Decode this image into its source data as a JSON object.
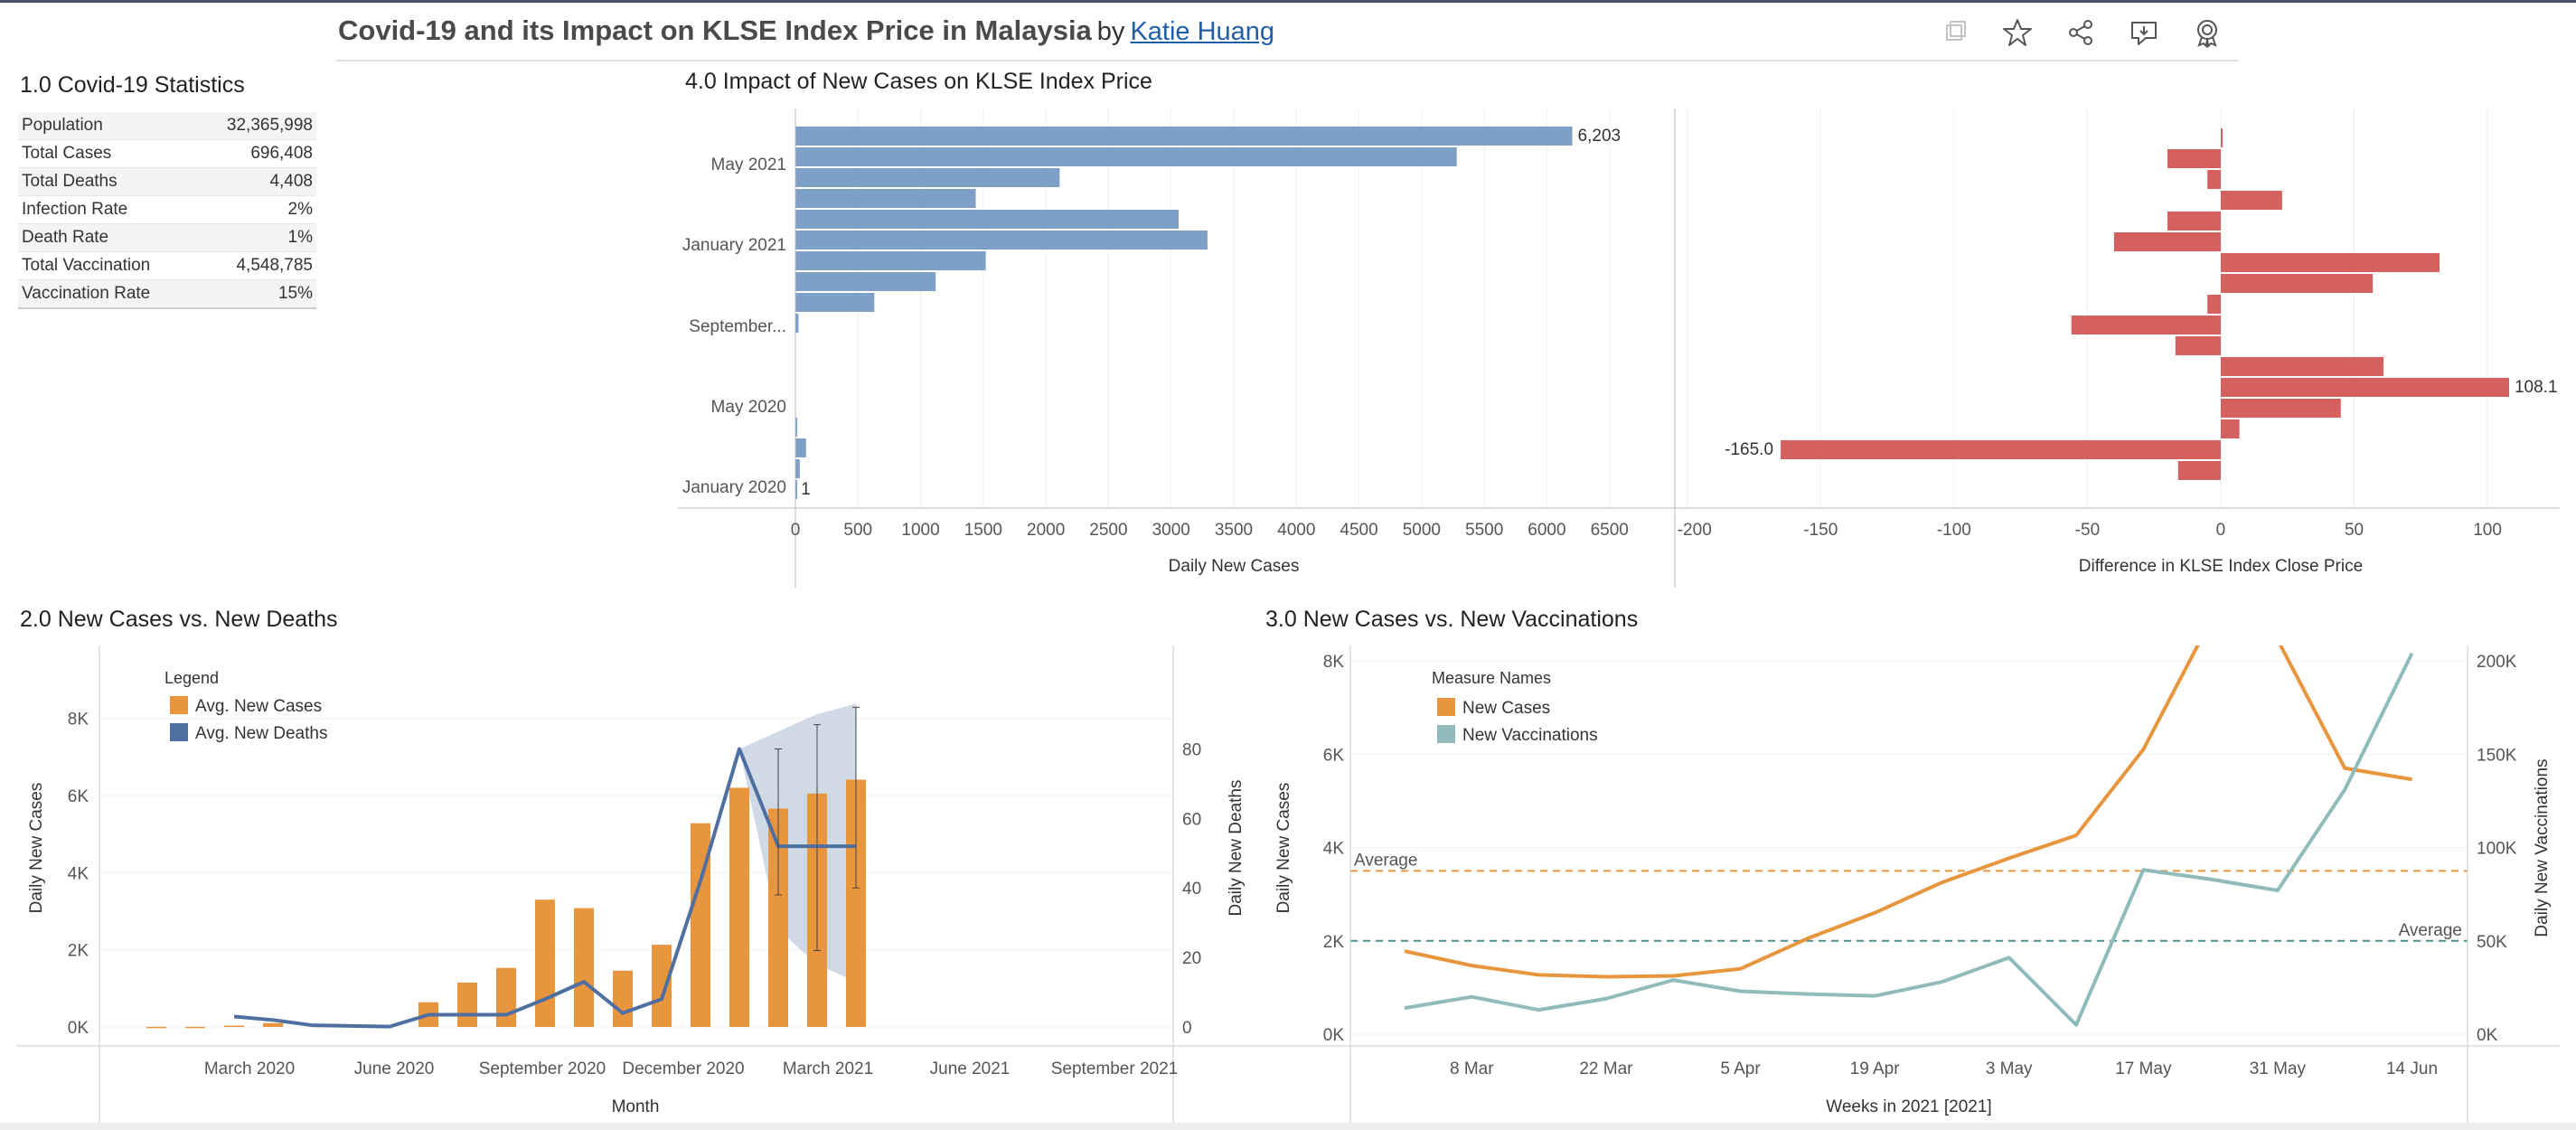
{
  "header": {
    "title": "Covid-19 and its Impact on KLSE Index Price in Malaysia",
    "by": "by",
    "author": "Katie Huang",
    "icons": [
      "duplicate-icon",
      "star-icon",
      "share-icon",
      "comment-icon",
      "badge-icon"
    ]
  },
  "stats": {
    "title": "1.0 Covid-19 Statistics",
    "rows": [
      {
        "label": "Population",
        "value": "32,365,998"
      },
      {
        "label": "Total Cases",
        "value": "696,408"
      },
      {
        "label": "Total Deaths",
        "value": "4,408"
      },
      {
        "label": "Infection Rate",
        "value": "2%"
      },
      {
        "label": "Death Rate",
        "value": "1%"
      },
      {
        "label": "Total Vaccination",
        "value": "4,548,785"
      },
      {
        "label": "Vaccination Rate",
        "value": "15%"
      }
    ]
  },
  "section_titles": {
    "impact": "4.0 Impact of New Cases on KLSE Index Price",
    "deaths": "2.0 New Cases vs. New Deaths",
    "vacc": "3.0 New Cases vs. New Vaccinations"
  },
  "chart_data": [
    {
      "id": "impact-cases",
      "type": "bar",
      "orientation": "horizontal",
      "xlabel": "Daily New Cases",
      "xlim": [
        0,
        7000
      ],
      "xticks": [
        "0",
        "500",
        "1000",
        "1500",
        "2000",
        "2500",
        "3000",
        "3500",
        "4000",
        "4500",
        "5000",
        "5500",
        "6000",
        "6500"
      ],
      "row_labels": [
        "May 2021",
        "January 2021",
        "September...",
        "May 2020",
        "January 2020"
      ],
      "values": [
        6203,
        5280,
        2110,
        1440,
        3060,
        3290,
        1520,
        1120,
        630,
        25,
        0,
        0,
        0,
        0,
        15,
        85,
        35,
        1
      ],
      "data_labels": {
        "max": "6,203",
        "min": "1"
      },
      "color": "#7e9fc6"
    },
    {
      "id": "impact-klse",
      "type": "bar",
      "orientation": "horizontal",
      "xlabel": "Difference in KLSE Index Close Price",
      "xlim": [
        -205,
        122
      ],
      "xticks": [
        -200,
        -150,
        -100,
        -50,
        0,
        50,
        100
      ],
      "values": [
        0.5,
        -20,
        -5,
        23,
        -20,
        -40,
        82,
        57,
        -5,
        -56,
        -17,
        61,
        108.1,
        45,
        7,
        -165.0,
        -16
      ],
      "data_labels": {
        "max": "108.1",
        "min": "-165.0"
      },
      "color": "#d4605f"
    },
    {
      "id": "deaths",
      "type": "bar+line",
      "legend_title": "Legend",
      "series": [
        {
          "name": "Avg. New Cases",
          "color": "#e8963e",
          "axis": "left",
          "values": [
            5,
            5,
            35,
            100,
            null,
            null,
            null,
            640,
            1150,
            1530,
            3300,
            3080,
            1460,
            2130,
            5280,
            6200,
            5660,
            6050,
            6410
          ]
        },
        {
          "name": "Avg. New Deaths",
          "color": "#4e6fa0",
          "axis": "right",
          "values": [
            null,
            null,
            3,
            2,
            0.5,
            0.3,
            0.1,
            3.5,
            3.5,
            3.5,
            8,
            13,
            4,
            8,
            42,
            80,
            52,
            52,
            52
          ]
        }
      ],
      "error_bars": [
        {
          "index": 16,
          "low": 38,
          "high": 80
        },
        {
          "index": 17,
          "low": 22,
          "high": 87
        },
        {
          "index": 18,
          "low": 40,
          "high": 92
        }
      ],
      "band": {
        "from_index": 15,
        "upper": [
          80,
          85,
          90,
          93
        ],
        "lower": [
          80,
          28,
          18,
          13
        ]
      },
      "month_labels": [
        "March 2020",
        "June 2020",
        "September 2020",
        "December 2020",
        "March 2021",
        "June 2021",
        "September 2021"
      ],
      "xlabel": "Month",
      "ylabel_left": "Daily New Cases",
      "ylabel_right": "Daily New Deaths",
      "yticks_left": [
        "0K",
        "2K",
        "4K",
        "6K",
        "8K"
      ],
      "yticks_right": [
        "0",
        "20",
        "40",
        "60",
        "80"
      ],
      "ylim_left": [
        0,
        8600
      ],
      "ylim_right": [
        0,
        95
      ]
    },
    {
      "id": "vacc",
      "type": "line",
      "legend_title": "Measure Names",
      "series": [
        {
          "name": "New Cases",
          "color": "#e8963e",
          "axis": "left",
          "values": [
            1780,
            1470,
            1270,
            1230,
            1250,
            1400,
            2050,
            2600,
            3250,
            3770,
            4260,
            6100,
            8850,
            8450,
            5700,
            5460
          ]
        },
        {
          "name": "New Vaccinations",
          "color": "#8fbcbb",
          "axis": "right",
          "values": [
            14000,
            20000,
            13000,
            19000,
            29000,
            23000,
            21500,
            20500,
            28000,
            41000,
            5000,
            88000,
            83000,
            77000,
            131000,
            204000
          ]
        }
      ],
      "averages": [
        {
          "label": "Average",
          "axis": "left",
          "value": 3500,
          "color": "#e8963e"
        },
        {
          "label": "Average",
          "axis": "right",
          "value": 50000,
          "color": "#4e8f8f"
        }
      ],
      "week_labels": [
        "8 Mar",
        "22 Mar",
        "5 Apr",
        "19 Apr",
        "3 May",
        "17 May",
        "31 May",
        "14 Jun"
      ],
      "xlabel": "Weeks in 2021 [2021]",
      "ylabel_left": "Daily New Cases",
      "ylabel_right": "Daily New Vaccinations",
      "yticks_left": [
        "0K",
        "2K",
        "4K",
        "6K",
        "8K"
      ],
      "yticks_right": [
        "0K",
        "50K",
        "100K",
        "150K",
        "200K"
      ],
      "ylim_left": [
        0,
        8000
      ],
      "ylim_right": [
        0,
        200000
      ]
    }
  ]
}
